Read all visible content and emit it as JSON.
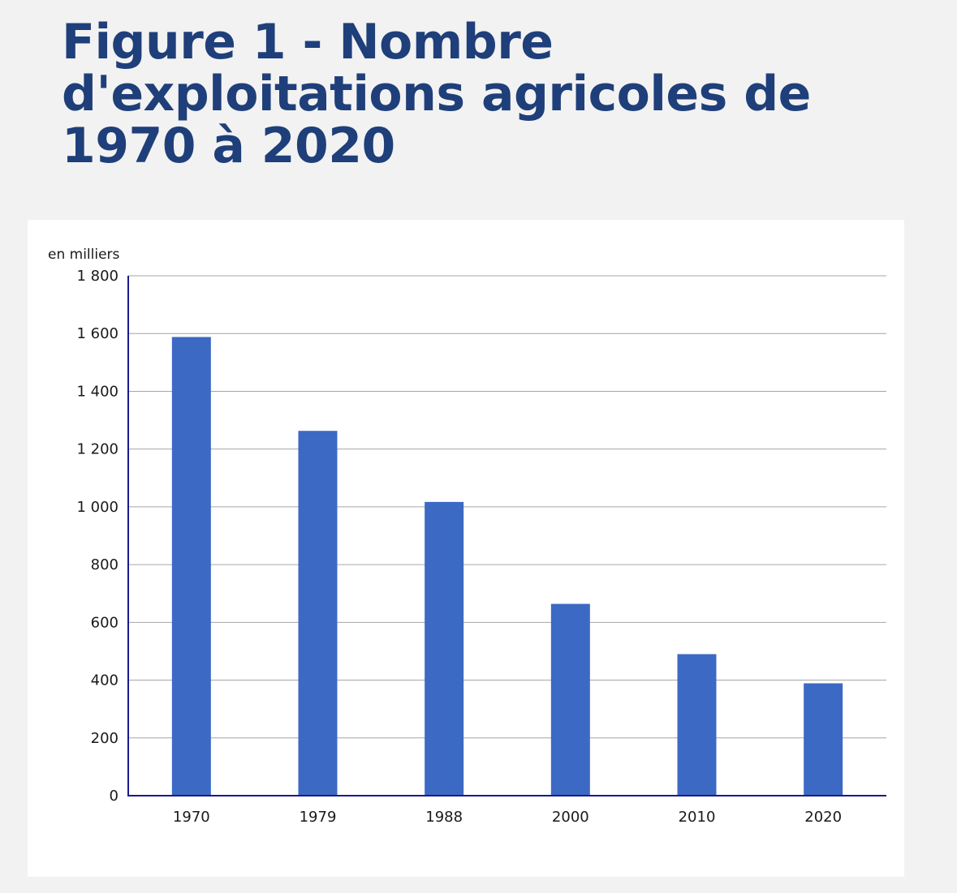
{
  "page": {
    "title": "Figure 1 - Nombre d'exploitations agricoles de 1970 à 2020"
  },
  "chart_data": {
    "type": "bar",
    "title": "Figure 1 - Nombre d'exploitations agricoles de 1970 à 2020",
    "unit_label": "en milliers",
    "xlabel": "",
    "ylabel": "en milliers",
    "categories": [
      "1970",
      "1979",
      "1988",
      "2000",
      "2010",
      "2020"
    ],
    "values": [
      1588,
      1263,
      1017,
      664,
      490,
      389
    ],
    "ylim": [
      0,
      1800
    ],
    "yticks": [
      0,
      200,
      400,
      600,
      800,
      1000,
      1200,
      1400,
      1600,
      1800
    ],
    "ytick_labels": [
      "0",
      "200",
      "400",
      "600",
      "800",
      "1 000",
      "1 200",
      "1 400",
      "1 600",
      "1 800"
    ],
    "grid": true,
    "legend": "none",
    "colors": {
      "bar": "#3c69c3",
      "axis": "#1a1a8c",
      "grid": "#a6a6a6",
      "title": "#1f3f7a"
    }
  }
}
